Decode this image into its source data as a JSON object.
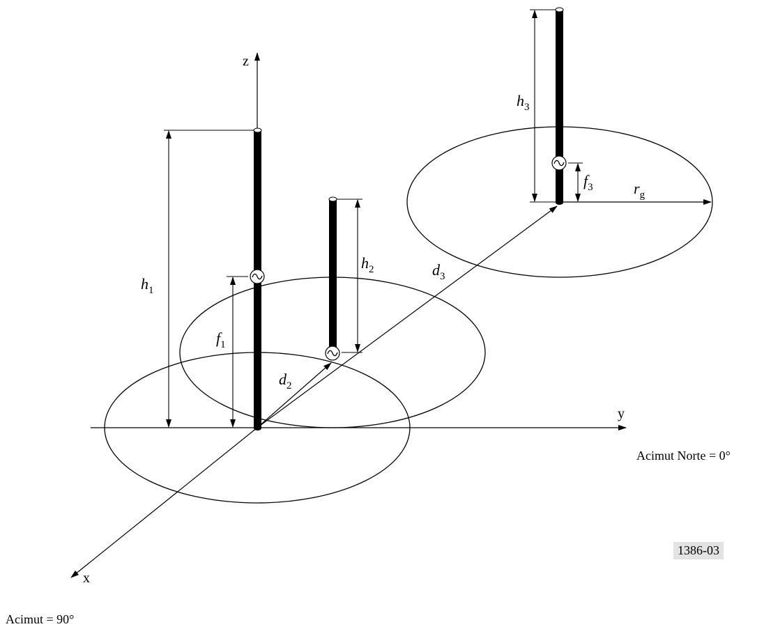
{
  "axes": {
    "x": "x",
    "y": "y",
    "z": "z"
  },
  "labels": {
    "h1": {
      "main": "h",
      "sub": "1"
    },
    "h2": {
      "main": "h",
      "sub": "2"
    },
    "h3": {
      "main": "h",
      "sub": "3"
    },
    "f1": {
      "main": "f",
      "sub": "1"
    },
    "f3": {
      "main": "f",
      "sub": "3"
    },
    "d2": {
      "main": "d",
      "sub": "2"
    },
    "d3": {
      "main": "d",
      "sub": "3"
    },
    "rg": {
      "main": "r",
      "sub": "g"
    }
  },
  "notes": {
    "azimuth_north": "Acimut Norte = 0°",
    "azimuth_east": "Acimut = 90°"
  },
  "figure_id": "1386-03"
}
